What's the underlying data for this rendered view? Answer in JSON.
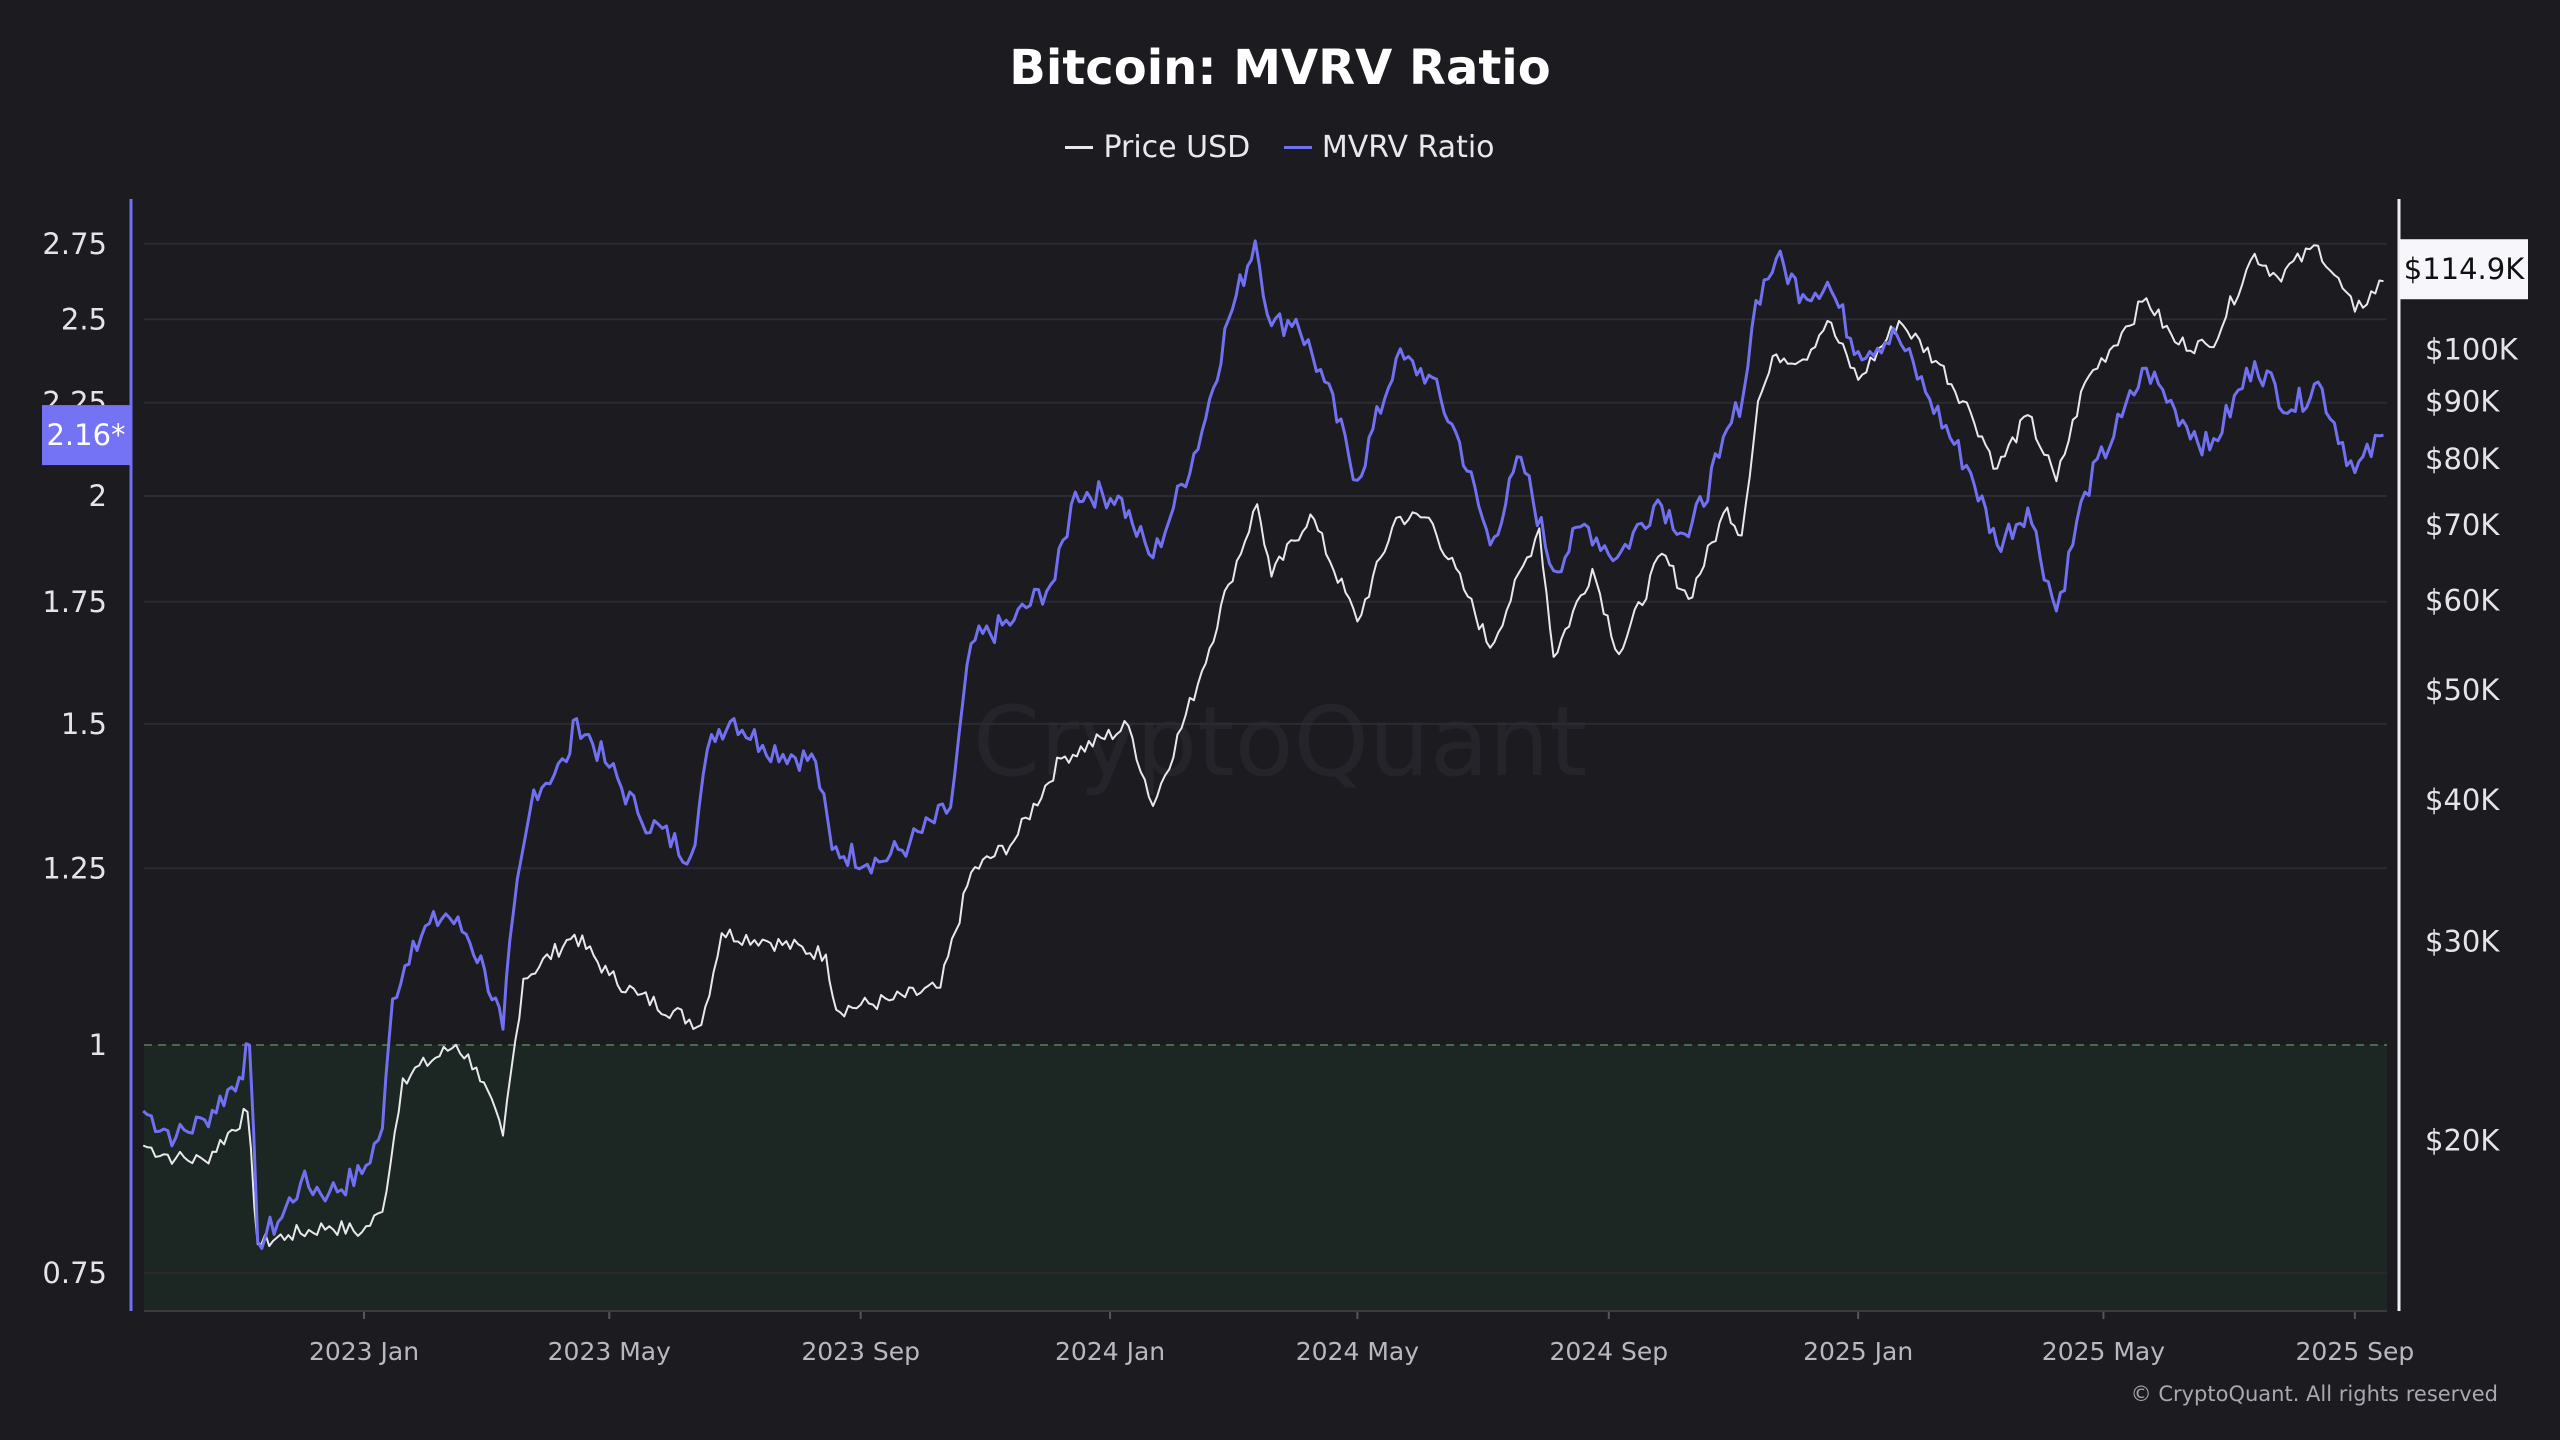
{
  "chart_data": {
    "type": "line",
    "title": "Bitcoin: MVRV Ratio",
    "legend_position": "top-center",
    "grid": true,
    "series": [
      {
        "name": "Price USD",
        "color": "#e8e8ee",
        "axis": "right",
        "scale": "log",
        "points": [
          [
            "2022-09-15",
            19800
          ],
          [
            "2022-10-01",
            19300
          ],
          [
            "2022-10-15",
            19200
          ],
          [
            "2022-11-05",
            21200
          ],
          [
            "2022-11-10",
            16200
          ],
          [
            "2022-11-25",
            16500
          ],
          [
            "2022-12-15",
            16800
          ],
          [
            "2022-12-31",
            16600
          ],
          [
            "2023-01-10",
            17300
          ],
          [
            "2023-01-20",
            22700
          ],
          [
            "2023-02-15",
            24300
          ],
          [
            "2023-02-25",
            23200
          ],
          [
            "2023-03-10",
            20200
          ],
          [
            "2023-03-20",
            27800
          ],
          [
            "2023-04-14",
            30400
          ],
          [
            "2023-05-01",
            28000
          ],
          [
            "2023-05-15",
            26900
          ],
          [
            "2023-06-15",
            25300
          ],
          [
            "2023-06-25",
            30500
          ],
          [
            "2023-07-15",
            30100
          ],
          [
            "2023-08-15",
            29200
          ],
          [
            "2023-08-20",
            26100
          ],
          [
            "2023-09-15",
            26600
          ],
          [
            "2023-10-10",
            27300
          ],
          [
            "2023-10-25",
            34500
          ],
          [
            "2023-11-15",
            36800
          ],
          [
            "2023-12-08",
            43500
          ],
          [
            "2024-01-10",
            46500
          ],
          [
            "2024-01-22",
            39500
          ],
          [
            "2024-02-15",
            52000
          ],
          [
            "2024-02-28",
            62000
          ],
          [
            "2024-03-13",
            73000
          ],
          [
            "2024-03-20",
            63000
          ],
          [
            "2024-04-08",
            71500
          ],
          [
            "2024-05-01",
            57500
          ],
          [
            "2024-05-20",
            71000
          ],
          [
            "2024-06-05",
            71000
          ],
          [
            "2024-06-24",
            60500
          ],
          [
            "2024-07-05",
            54500
          ],
          [
            "2024-07-29",
            69500
          ],
          [
            "2024-08-05",
            53500
          ],
          [
            "2024-08-24",
            64000
          ],
          [
            "2024-09-06",
            53800
          ],
          [
            "2024-09-27",
            66000
          ],
          [
            "2024-10-10",
            60200
          ],
          [
            "2024-10-29",
            72500
          ],
          [
            "2024-11-05",
            68500
          ],
          [
            "2024-11-13",
            90000
          ],
          [
            "2024-11-22",
            99000
          ],
          [
            "2024-12-05",
            98000
          ],
          [
            "2024-12-17",
            106000
          ],
          [
            "2025-01-01",
            94000
          ],
          [
            "2025-01-21",
            106000
          ],
          [
            "2025-02-10",
            97000
          ],
          [
            "2025-02-25",
            88000
          ],
          [
            "2025-03-10",
            78500
          ],
          [
            "2025-03-25",
            87500
          ],
          [
            "2025-04-08",
            76500
          ],
          [
            "2025-04-22",
            93500
          ],
          [
            "2025-05-10",
            103500
          ],
          [
            "2025-05-22",
            111000
          ],
          [
            "2025-06-05",
            101500
          ],
          [
            "2025-06-22",
            100500
          ],
          [
            "2025-07-14",
            121500
          ],
          [
            "2025-07-25",
            116000
          ],
          [
            "2025-08-14",
            123500
          ],
          [
            "2025-09-01",
            108000
          ],
          [
            "2025-09-15",
            114900
          ]
        ]
      },
      {
        "name": "MVRV Ratio",
        "color": "#7170f0",
        "axis": "left",
        "scale": "log",
        "points": [
          [
            "2022-09-15",
            0.92
          ],
          [
            "2022-10-01",
            0.89
          ],
          [
            "2022-10-15",
            0.91
          ],
          [
            "2022-11-01",
            0.96
          ],
          [
            "2022-11-06",
            1.0
          ],
          [
            "2022-11-10",
            0.78
          ],
          [
            "2022-11-20",
            0.8
          ],
          [
            "2022-12-01",
            0.84
          ],
          [
            "2022-12-15",
            0.83
          ],
          [
            "2022-12-31",
            0.85
          ],
          [
            "2023-01-10",
            0.9
          ],
          [
            "2023-01-15",
            1.06
          ],
          [
            "2023-01-25",
            1.14
          ],
          [
            "2023-02-10",
            1.18
          ],
          [
            "2023-02-20",
            1.15
          ],
          [
            "2023-03-01",
            1.1
          ],
          [
            "2023-03-10",
            1.02
          ],
          [
            "2023-03-15",
            1.18
          ],
          [
            "2023-03-25",
            1.38
          ],
          [
            "2023-04-10",
            1.43
          ],
          [
            "2023-04-15",
            1.51
          ],
          [
            "2023-05-01",
            1.42
          ],
          [
            "2023-05-15",
            1.34
          ],
          [
            "2023-06-10",
            1.27
          ],
          [
            "2023-06-20",
            1.48
          ],
          [
            "2023-07-01",
            1.51
          ],
          [
            "2023-07-15",
            1.46
          ],
          [
            "2023-08-10",
            1.43
          ],
          [
            "2023-08-18",
            1.28
          ],
          [
            "2023-09-10",
            1.26
          ],
          [
            "2023-09-25",
            1.29
          ],
          [
            "2023-10-15",
            1.35
          ],
          [
            "2023-10-25",
            1.66
          ],
          [
            "2023-11-15",
            1.71
          ],
          [
            "2023-12-05",
            1.8
          ],
          [
            "2023-12-15",
            2.01
          ],
          [
            "2024-01-05",
            2.0
          ],
          [
            "2024-01-12",
            1.93
          ],
          [
            "2024-01-22",
            1.85
          ],
          [
            "2024-02-01",
            1.97
          ],
          [
            "2024-02-15",
            2.17
          ],
          [
            "2024-02-28",
            2.5
          ],
          [
            "2024-03-12",
            2.76
          ],
          [
            "2024-03-20",
            2.48
          ],
          [
            "2024-04-01",
            2.5
          ],
          [
            "2024-04-15",
            2.31
          ],
          [
            "2024-05-01",
            2.04
          ],
          [
            "2024-05-20",
            2.38
          ],
          [
            "2024-06-05",
            2.33
          ],
          [
            "2024-06-20",
            2.14
          ],
          [
            "2024-07-05",
            1.88
          ],
          [
            "2024-07-20",
            2.1
          ],
          [
            "2024-08-05",
            1.82
          ],
          [
            "2024-08-20",
            1.93
          ],
          [
            "2024-09-05",
            1.85
          ],
          [
            "2024-09-25",
            1.99
          ],
          [
            "2024-10-10",
            1.9
          ],
          [
            "2024-10-25",
            2.1
          ],
          [
            "2024-11-06",
            2.28
          ],
          [
            "2024-11-12",
            2.56
          ],
          [
            "2024-11-22",
            2.7
          ],
          [
            "2024-12-05",
            2.58
          ],
          [
            "2024-12-17",
            2.62
          ],
          [
            "2025-01-01",
            2.4
          ],
          [
            "2025-01-20",
            2.45
          ],
          [
            "2025-02-05",
            2.26
          ],
          [
            "2025-02-25",
            2.06
          ],
          [
            "2025-03-10",
            1.88
          ],
          [
            "2025-03-25",
            1.97
          ],
          [
            "2025-04-08",
            1.73
          ],
          [
            "2025-04-22",
            2.01
          ],
          [
            "2025-05-10",
            2.21
          ],
          [
            "2025-05-22",
            2.35
          ],
          [
            "2025-06-05",
            2.23
          ],
          [
            "2025-06-22",
            2.12
          ],
          [
            "2025-07-14",
            2.37
          ],
          [
            "2025-08-01",
            2.23
          ],
          [
            "2025-08-14",
            2.31
          ],
          [
            "2025-09-01",
            2.06
          ],
          [
            "2025-09-15",
            2.16
          ]
        ]
      }
    ],
    "left_axis": {
      "ticks": [
        "0.75",
        "1",
        "1.25",
        "1.5",
        "1.75",
        "2",
        "2.25",
        "2.5",
        "2.75"
      ],
      "scale": "log",
      "color": "#7170f0"
    },
    "right_axis": {
      "ticks": [
        "$20K",
        "$30K",
        "$40K",
        "$50K",
        "$60K",
        "$70K",
        "$80K",
        "$90K",
        "$100K"
      ],
      "tick_values": [
        20000,
        30000,
        40000,
        50000,
        60000,
        70000,
        80000,
        90000,
        100000
      ],
      "scale": "log"
    },
    "x_axis": {
      "ticks": [
        "2023 Jan",
        "2023 May",
        "2023 Sep",
        "2024 Jan",
        "2024 May",
        "2024 Sep",
        "2025 Jan",
        "2025 May",
        "2025 Sep"
      ],
      "tick_dates": [
        "2023-01-01",
        "2023-05-01",
        "2023-09-01",
        "2024-01-01",
        "2024-05-01",
        "2024-09-01",
        "2025-01-01",
        "2025-05-01",
        "2025-09-01"
      ]
    },
    "current_mvrv_label": "2.16*",
    "current_price_label": "$114.9K",
    "threshold": {
      "value": 1,
      "zone": "below",
      "zone_color": "#1c2622"
    }
  },
  "watermark": "CryptoQuant",
  "copyright": "© CryptoQuant. All rights reserved"
}
